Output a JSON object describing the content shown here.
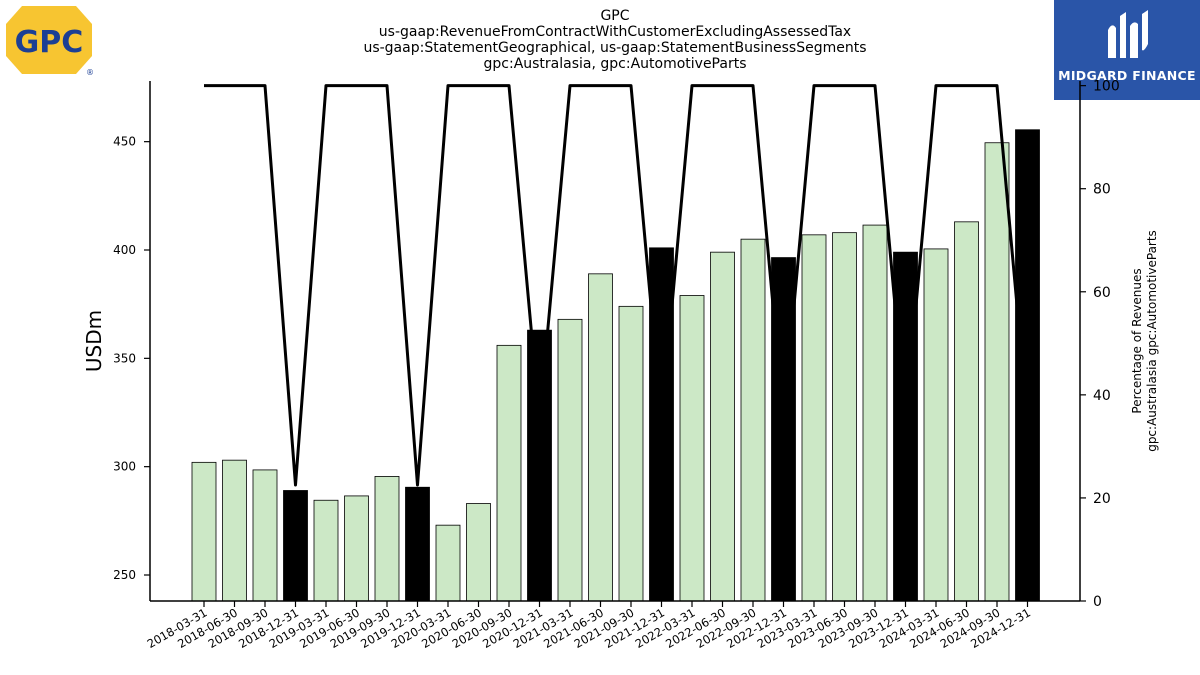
{
  "header": {
    "title_lines": [
      "GPC",
      "us-gaap:RevenueFromContractWithCustomerExcludingAssessedTax",
      "us-gaap:StatementGeographical, us-gaap:StatementBusinessSegments",
      "gpc:Australasia, gpc:AutomotiveParts"
    ]
  },
  "logos": {
    "left_text": "GPC",
    "left_mark": "®",
    "right_text": "MIDGARD FINANCE"
  },
  "colors": {
    "quarter_bar": "#cce8c6",
    "annual_bar": "#000000",
    "line": "#000000",
    "gpc_yellow": "#f7c531",
    "gpc_blue": "#1c3f94",
    "midgard_blue": "#2a55a8"
  },
  "chart_data": {
    "type": "bar",
    "categories": [
      "2018-03-31",
      "2018-06-30",
      "2018-09-30",
      "2018-12-31",
      "2019-03-31",
      "2019-06-30",
      "2019-09-30",
      "2019-12-31",
      "2020-03-31",
      "2020-06-30",
      "2020-09-30",
      "2020-12-31",
      "2021-03-31",
      "2021-06-30",
      "2021-09-30",
      "2021-12-31",
      "2022-03-31",
      "2022-06-30",
      "2022-09-30",
      "2022-12-31",
      "2023-03-31",
      "2023-06-30",
      "2023-09-30",
      "2023-12-31",
      "2024-03-31",
      "2024-06-30",
      "2024-09-30",
      "2024-12-31"
    ],
    "values": [
      302,
      303,
      298.5,
      289,
      284.5,
      286.5,
      295.5,
      290.5,
      273,
      283,
      356,
      363,
      368,
      389,
      374,
      401,
      379,
      399,
      405,
      396.5,
      407,
      408,
      411.5,
      399,
      400.5,
      413,
      449.5,
      455.5
    ],
    "annual_flags": [
      0,
      0,
      0,
      1,
      0,
      0,
      0,
      1,
      0,
      0,
      0,
      1,
      0,
      0,
      0,
      1,
      0,
      0,
      0,
      1,
      0,
      0,
      0,
      1,
      0,
      0,
      0,
      1
    ],
    "line_series": {
      "values": [
        100,
        100,
        100,
        22.5,
        100,
        100,
        100,
        22.5,
        100,
        100,
        100,
        35,
        100,
        100,
        100,
        35,
        100,
        100,
        100,
        35,
        100,
        100,
        100,
        35,
        100,
        100,
        100,
        35
      ]
    },
    "ylabel": "USDm",
    "ylim": [
      238,
      478
    ],
    "yticks": [
      250,
      300,
      350,
      400,
      450
    ],
    "y2label_lines": [
      "Percentage of Revenues",
      "gpc:Australasia gpc:AutomotiveParts"
    ],
    "y2lim": [
      0,
      100.9
    ],
    "y2ticks": [
      0,
      20,
      40,
      60,
      80,
      100
    ],
    "grid": false,
    "legend": "none"
  }
}
